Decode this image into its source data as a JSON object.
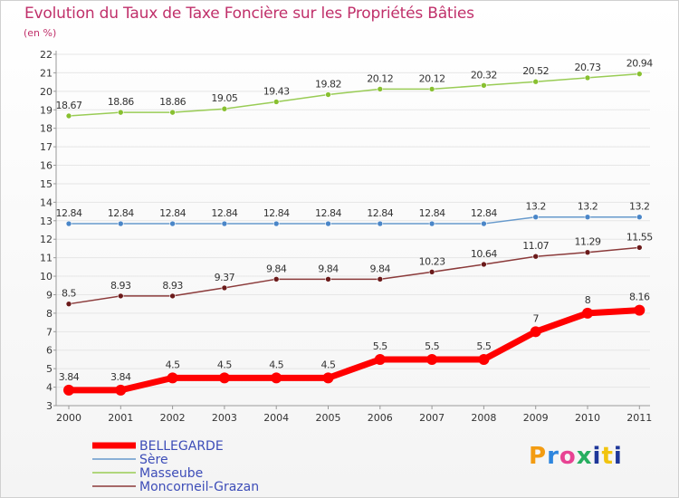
{
  "title": "Evolution du Taux de Taxe Foncière sur les Propriétés Bâties",
  "subtitle": "(en %)",
  "logo": "Proxiti",
  "chart_data": {
    "type": "line",
    "title": "Evolution du Taux de Taxe Foncière sur les Propriétés Bâties",
    "ylabel": "(en %)",
    "ylim": [
      3,
      22
    ],
    "yticks": [
      3,
      4,
      5,
      6,
      7,
      8,
      9,
      10,
      11,
      12,
      13,
      14,
      15,
      16,
      17,
      18,
      19,
      20,
      21,
      22
    ],
    "categories": [
      "2000",
      "2001",
      "2002",
      "2003",
      "2004",
      "2005",
      "2006",
      "2007",
      "2008",
      "2009",
      "2010",
      "2011"
    ],
    "series": [
      {
        "name": "Masseube",
        "color": "#99cc55",
        "marker": "#88c030",
        "values": [
          18.67,
          18.86,
          18.86,
          19.05,
          19.43,
          19.82,
          20.12,
          20.12,
          20.32,
          20.52,
          20.73,
          20.94
        ],
        "labels": [
          "18.67",
          "18.86",
          "18.86",
          "19.05",
          "19.43",
          "19.82",
          "20.12",
          "20.12",
          "20.32",
          "20.52",
          "20.73",
          "20.94"
        ]
      },
      {
        "name": "Sère",
        "color": "#6699cc",
        "marker": "#4a86c8",
        "values": [
          12.84,
          12.84,
          12.84,
          12.84,
          12.84,
          12.84,
          12.84,
          12.84,
          12.84,
          13.2,
          13.2,
          13.2
        ],
        "labels": [
          "12.84",
          "12.84",
          "12.84",
          "12.84",
          "12.84",
          "12.84",
          "12.84",
          "12.84",
          "12.84",
          "13.2",
          "13.2",
          "13.2"
        ]
      },
      {
        "name": "Moncorneil-Grazan",
        "color": "#8b3a3a",
        "marker": "#6b1a1a",
        "values": [
          8.5,
          8.93,
          8.93,
          9.37,
          9.84,
          9.84,
          9.84,
          10.23,
          10.64,
          11.07,
          11.29,
          11.55
        ],
        "labels": [
          "8.5",
          "8.93",
          "8.93",
          "9.37",
          "9.84",
          "9.84",
          "9.84",
          "10.23",
          "10.64",
          "11.07",
          "11.29",
          "11.55"
        ]
      },
      {
        "name": "BELLEGARDE",
        "color": "#ff0000",
        "marker": "#ff0000",
        "values": [
          3.84,
          3.84,
          4.5,
          4.5,
          4.5,
          4.5,
          5.5,
          5.5,
          5.5,
          7,
          8,
          8.16
        ],
        "labels": [
          "3.84",
          "3.84",
          "4.5",
          "4.5",
          "4.5",
          "4.5",
          "5.5",
          "5.5",
          "5.5",
          "7",
          "8",
          "8.16"
        ]
      }
    ],
    "legend": [
      "BELLEGARDE",
      "Sère",
      "Masseube",
      "Moncorneil-Grazan"
    ],
    "legend_placement": "bottom-left"
  }
}
